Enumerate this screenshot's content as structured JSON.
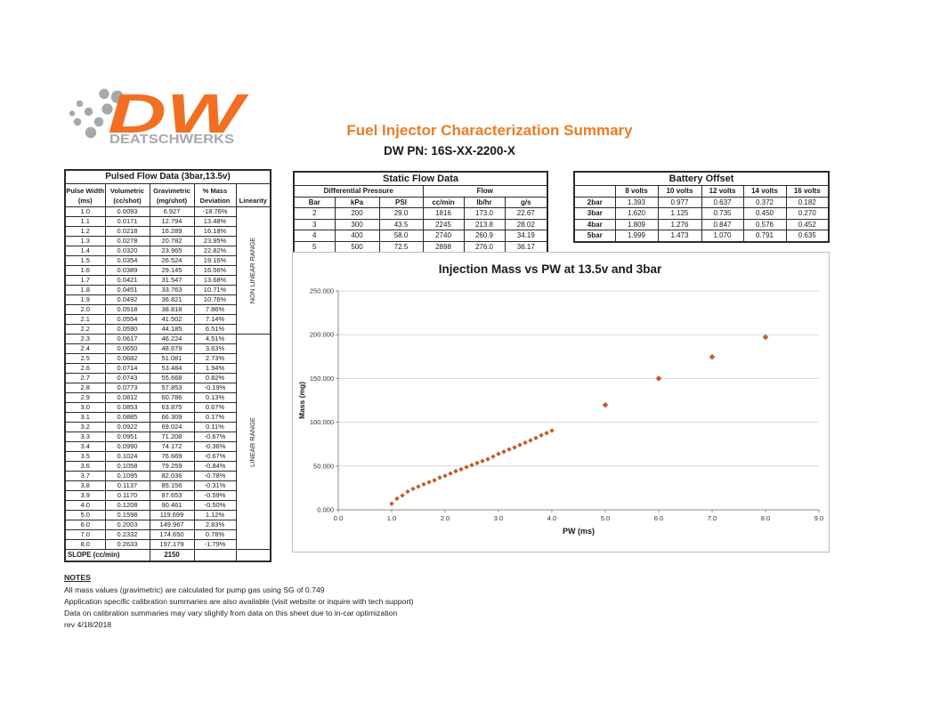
{
  "header": {
    "title": "Fuel Injector Characterization Summary",
    "part_number": "DW PN: 16S-XX-2200-X"
  },
  "logo": {
    "monogram": "DW",
    "brand": "DEATSCHWERKS",
    "orange": "#F26F21",
    "gray": "#A6A8AB"
  },
  "pulsed_table": {
    "title": "Pulsed Flow Data (3bar,13.5v)",
    "col_headers": [
      [
        "Pulse Width",
        "(ms)"
      ],
      [
        "Volumetric",
        "(cc/shot)"
      ],
      [
        "Gravimetric",
        "(mg/shot)"
      ],
      [
        "% Mass",
        "Deviation"
      ],
      [
        "",
        "Linearity"
      ]
    ],
    "rows": [
      [
        "1.0",
        "0.0093",
        "6.927",
        "-18.76%"
      ],
      [
        "1.1",
        "0.0171",
        "12.794",
        "13.48%"
      ],
      [
        "1.2",
        "0.0218",
        "16.289",
        "16.18%"
      ],
      [
        "1.3",
        "0.0278",
        "20.782",
        "23.95%"
      ],
      [
        "1.4",
        "0.0320",
        "23.965",
        "22.82%"
      ],
      [
        "1.5",
        "0.0354",
        "26.524",
        "19.16%"
      ],
      [
        "1.6",
        "0.0389",
        "29.145",
        "16.56%"
      ],
      [
        "1.7",
        "0.0421",
        "31.547",
        "13.68%"
      ],
      [
        "1.8",
        "0.0451",
        "33.763",
        "10.71%"
      ],
      [
        "1.9",
        "0.0492",
        "36.821",
        "10.76%"
      ],
      [
        "2.0",
        "0.0518",
        "38.818",
        "7.86%"
      ],
      [
        "2.1",
        "0.0554",
        "41.502",
        "7.14%"
      ],
      [
        "2.2",
        "0.0590",
        "44.185",
        "6.51%"
      ],
      [
        "2.3",
        "0.0617",
        "46.224",
        "4.51%"
      ],
      [
        "2.4",
        "0.0650",
        "48.679",
        "3.63%"
      ],
      [
        "2.5",
        "0.0682",
        "51.081",
        "2.73%"
      ],
      [
        "2.6",
        "0.0714",
        "53.484",
        "1.94%"
      ],
      [
        "2.7",
        "0.0743",
        "55.668",
        "0.82%"
      ],
      [
        "2.8",
        "0.0773",
        "57.853",
        "-0.19%"
      ],
      [
        "2.9",
        "0.0812",
        "60.786",
        "0.13%"
      ],
      [
        "3.0",
        "0.0853",
        "63.875",
        "0.67%"
      ],
      [
        "3.1",
        "0.0885",
        "66.309",
        "0.17%"
      ],
      [
        "3.2",
        "0.0922",
        "69.024",
        "0.11%"
      ],
      [
        "3.3",
        "0.0951",
        "71.208",
        "-0.67%"
      ],
      [
        "3.4",
        "0.0990",
        "74.172",
        "-0.36%"
      ],
      [
        "3.5",
        "0.1024",
        "76.669",
        "-0.67%"
      ],
      [
        "3.6",
        "0.1058",
        "79.259",
        "-0.84%"
      ],
      [
        "3.7",
        "0.1095",
        "82.036",
        "-0.78%"
      ],
      [
        "3.8",
        "0.1137",
        "85.156",
        "-0.31%"
      ],
      [
        "3.9",
        "0.1170",
        "87.653",
        "-0.59%"
      ],
      [
        "4.0",
        "0.1208",
        "90.461",
        "-0.50%"
      ],
      [
        "5.0",
        "0.1598",
        "119.699",
        "1.12%"
      ],
      [
        "6.0",
        "0.2003",
        "149.967",
        "2.83%"
      ],
      [
        "7.0",
        "0.2332",
        "174.650",
        "0.78%"
      ],
      [
        "8.0",
        "0.2633",
        "197.179",
        "-1.79%"
      ]
    ],
    "linearity_groups": [
      {
        "label": "NON LINEAR RANGE",
        "span": 13
      },
      {
        "label": "LINEAR RANGE",
        "span": 22
      }
    ],
    "slope_label": "SLOPE (cc/min)",
    "slope_value": "2150"
  },
  "static_table": {
    "title": "Static Flow Data",
    "group_headers": [
      "Differential Pressure",
      "Flow"
    ],
    "col_headers": [
      "Bar",
      "kPa",
      "PSI",
      "cc/min",
      "lb/hr",
      "g/s"
    ],
    "rows": [
      [
        "2",
        "200",
        "29.0",
        "1816",
        "173.0",
        "22.67"
      ],
      [
        "3",
        "300",
        "43.5",
        "2245",
        "213.8",
        "28.02"
      ],
      [
        "4",
        "400",
        "58.0",
        "2740",
        "260.9",
        "34.19"
      ],
      [
        "5",
        "500",
        "72.5",
        "2898",
        "276.0",
        "36.17"
      ]
    ]
  },
  "battery_table": {
    "title": "Battery Offset",
    "col_headers": [
      "",
      "8 volts",
      "10 volts",
      "12 volts",
      "14 volts",
      "16 volts"
    ],
    "rows": [
      [
        "2bar",
        "1.393",
        "0.977",
        "0.637",
        "0.372",
        "0.182"
      ],
      [
        "3bar",
        "1.620",
        "1.125",
        "0.735",
        "0.450",
        "0.270"
      ],
      [
        "4bar",
        "1.809",
        "1.276",
        "0.847",
        "0.576",
        "0.452"
      ],
      [
        "5bar",
        "1.999",
        "1.473",
        "1.070",
        "0.791",
        "0.635"
      ]
    ]
  },
  "chart_data": {
    "type": "scatter",
    "title": "Injection Mass vs PW at 13.5v and 3bar",
    "xlabel": "PW (ms)",
    "ylabel": "Mass (mg)",
    "xlim": [
      0,
      9
    ],
    "ylim": [
      0,
      250
    ],
    "grid": true,
    "legend": "none",
    "marker": {
      "shape": "diamond",
      "color": "#BF5E2B"
    },
    "x_ticks": [
      "0.0",
      "1.0",
      "2.0",
      "3.0",
      "4.0",
      "5.0",
      "6.0",
      "7.0",
      "8.0",
      "9.0"
    ],
    "y_ticks": [
      "0.000",
      "50.000",
      "100.000",
      "150.000",
      "200.000",
      "250.000"
    ],
    "series": [
      {
        "name": "Injection Mass",
        "x": [
          1.0,
          1.1,
          1.2,
          1.3,
          1.4,
          1.5,
          1.6,
          1.7,
          1.8,
          1.9,
          2.0,
          2.1,
          2.2,
          2.3,
          2.4,
          2.5,
          2.6,
          2.7,
          2.8,
          2.9,
          3.0,
          3.1,
          3.2,
          3.3,
          3.4,
          3.5,
          3.6,
          3.7,
          3.8,
          3.9,
          4.0,
          5.0,
          6.0,
          7.0,
          8.0
        ],
        "y": [
          6.927,
          12.794,
          16.289,
          20.782,
          23.965,
          26.524,
          29.145,
          31.547,
          33.763,
          36.821,
          38.818,
          41.502,
          44.185,
          46.224,
          48.679,
          51.081,
          53.484,
          55.668,
          57.853,
          60.786,
          63.875,
          66.309,
          69.024,
          71.208,
          74.172,
          76.669,
          79.259,
          82.036,
          85.156,
          87.653,
          90.461,
          119.699,
          149.967,
          174.65,
          197.179
        ]
      }
    ]
  },
  "notes": {
    "heading": "NOTES",
    "lines": [
      "All mass values (gravimetric) are calculated for pump gas using SG of 0.749",
      "Application specific calibration summaries are also available (visit website or inquire with tech support)",
      "Data on calibration summaries may vary slightly from data on this sheet due to in-car optimization",
      "rev 4/18/2018"
    ]
  }
}
